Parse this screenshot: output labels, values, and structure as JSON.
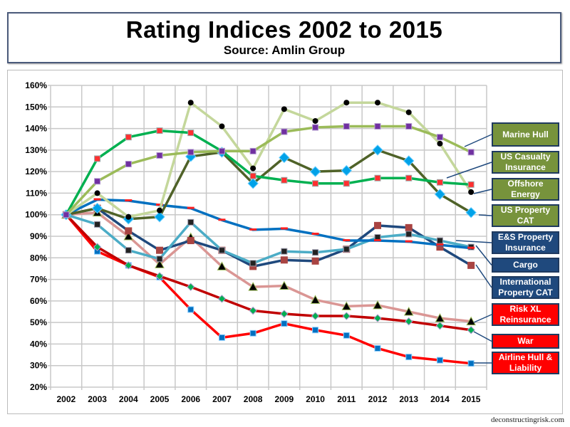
{
  "chart_data": {
    "type": "line",
    "title": "Rating Indices 2002 to 2015",
    "subtitle": "Source: Amlin Group",
    "xlabel": "",
    "ylabel": "",
    "ylim": [
      20,
      160
    ],
    "y_ticks": [
      "20%",
      "30%",
      "40%",
      "50%",
      "60%",
      "70%",
      "80%",
      "90%",
      "100%",
      "110%",
      "120%",
      "130%",
      "140%",
      "150%",
      "160%"
    ],
    "grid": true,
    "legend_placement": "right (callout labels)",
    "x": [
      "2002",
      "2003",
      "2004",
      "2005",
      "2006",
      "2007",
      "2008",
      "2009",
      "2010",
      "2011",
      "2012",
      "2013",
      "2014",
      "2015"
    ],
    "series": [
      {
        "name": "Marine Hull",
        "color": "#9bbb59",
        "marker": "square-purple",
        "box_color": "#77933c",
        "values": [
          100,
          115.5,
          123.5,
          127.5,
          129,
          129.5,
          129.5,
          138.5,
          140.5,
          141,
          141,
          141,
          136,
          129
        ]
      },
      {
        "name": "US Casualty Insurance",
        "color": "#00b050",
        "marker": "xsquare-red",
        "box_color": "#77933c",
        "values": [
          100,
          126,
          136,
          139,
          138,
          129.5,
          118,
          116,
          114.5,
          114.5,
          117,
          117,
          115,
          114
        ]
      },
      {
        "name": "Offshore Energy",
        "color": "#c4d79b",
        "marker": "circle-black",
        "box_color": "#77933c",
        "values": [
          100,
          110,
          99,
          102,
          152,
          141,
          121.5,
          149,
          143.5,
          152,
          152,
          147.5,
          133,
          110.5
        ]
      },
      {
        "name": "US Property CAT",
        "color": "#4f6228",
        "marker": "diamond-blue",
        "box_color": "#77933c",
        "values": [
          100,
          103,
          98,
          99,
          127,
          129,
          114.5,
          126.5,
          120,
          120.5,
          130,
          125,
          109.5,
          101
        ]
      },
      {
        "name": "E&S Property Insurance",
        "color": "#0070c0",
        "marker": "dash-red",
        "box_color": "#1f497d",
        "values": [
          100,
          107,
          106.5,
          104.5,
          103,
          97.5,
          93,
          93.5,
          91,
          88,
          88,
          87.5,
          86,
          84.5
        ]
      },
      {
        "name": "Cargo",
        "color": "#4bacc6",
        "marker": "xsquare-black",
        "box_color": "#1f497d",
        "values": [
          100,
          95.5,
          83.5,
          79.5,
          96.5,
          83.5,
          77.5,
          83,
          82.5,
          84,
          89.5,
          91,
          88,
          85
        ]
      },
      {
        "name": "International Property CAT",
        "color": "#1f497d",
        "marker": "square-brown",
        "box_color": "#1f497d",
        "values": [
          100,
          103,
          92.5,
          83.5,
          88,
          83.5,
          76,
          79,
          78.5,
          84,
          95,
          94,
          85,
          76.5
        ]
      },
      {
        "name": "Risk XL Reinsurance",
        "color": "#da9694",
        "marker": "triangle-black",
        "box_color": "#ff0000",
        "values": [
          100,
          101,
          90,
          77,
          89.5,
          76,
          66.5,
          67,
          60.5,
          57.5,
          58,
          55,
          52,
          50.5
        ]
      },
      {
        "name": "War",
        "color": "#c00000",
        "marker": "diamond-green",
        "box_color": "#ff0000",
        "values": [
          100,
          85,
          76.5,
          71.5,
          66.5,
          61,
          55.5,
          54,
          53,
          53,
          52,
          50.5,
          48.5,
          46.5
        ]
      },
      {
        "name": "Airline Hull & Liability",
        "color": "#ff0000",
        "marker": "square-blue",
        "box_color": "#ff0000",
        "values": [
          100,
          83,
          76.5,
          71,
          56,
          43,
          45,
          49.5,
          46.5,
          44,
          38,
          34,
          32.5,
          31
        ]
      }
    ]
  },
  "footer": "deconstructingrisk.com"
}
